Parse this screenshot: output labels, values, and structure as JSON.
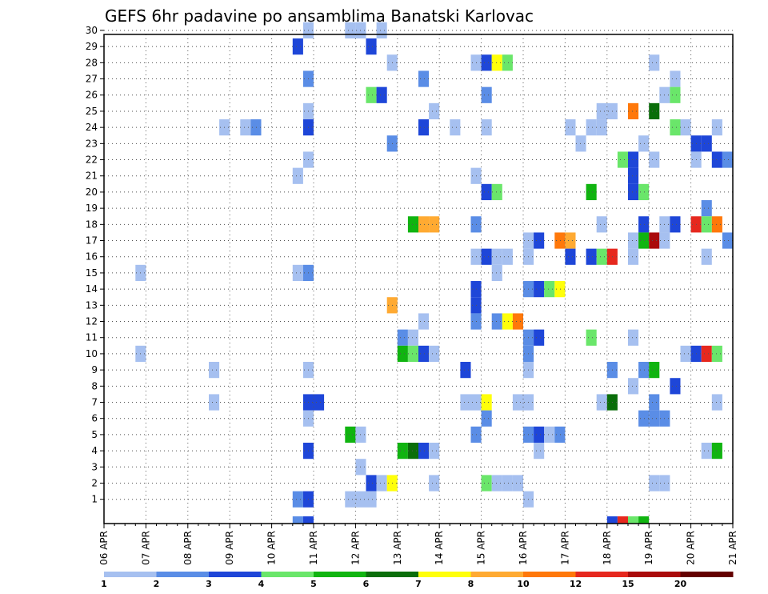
{
  "chart_data": {
    "type": "heatmap",
    "title": "GEFS 6hr padavine po ansamblima Banatski Karlovac",
    "x_tick_labels": [
      "06 APR",
      "07 APR",
      "08 APR",
      "09 APR",
      "10 APR",
      "11 APR",
      "12 APR",
      "13 APR",
      "14 APR",
      "15 APR",
      "16 APR",
      "17 APR",
      "18 APR",
      "19 APR",
      "20 APR",
      "21 APR"
    ],
    "y_tick_labels": [
      "1",
      "2",
      "3",
      "4",
      "5",
      "6",
      "7",
      "8",
      "9",
      "10",
      "11",
      "12",
      "13",
      "14",
      "15",
      "16",
      "17",
      "18",
      "19",
      "20",
      "21",
      "22",
      "23",
      "24",
      "25",
      "26",
      "27",
      "28",
      "29",
      "30"
    ],
    "x_range_days": [
      0,
      15
    ],
    "y_range_members": [
      0,
      30
    ],
    "grid": true,
    "legend": {
      "placement": "bottom",
      "labels": [
        "1",
        "2",
        "3",
        "4",
        "5",
        "6",
        "7",
        "8",
        "10",
        "12",
        "15",
        "20"
      ],
      "colors": [
        "#a6c0f0",
        "#5a8de6",
        "#1e46d8",
        "#6ae66a",
        "#10b410",
        "#0a6e0a",
        "#ffff0a",
        "#ffaa32",
        "#ff780a",
        "#e6281e",
        "#aa0a0a",
        "#640000"
      ]
    },
    "cell_width_hours": 6,
    "cells_note": "each cell: [member, day offset from 06 APR 00z, legend class index 0-11]",
    "cells": [
      [
        30,
        4.75,
        0
      ],
      [
        30,
        5.75,
        0
      ],
      [
        30,
        6.0,
        0
      ],
      [
        30,
        6.5,
        0
      ],
      [
        29,
        4.5,
        2
      ],
      [
        29,
        6.25,
        2
      ],
      [
        28,
        6.75,
        0
      ],
      [
        28,
        8.75,
        0
      ],
      [
        28,
        9.0,
        2
      ],
      [
        28,
        9.25,
        6
      ],
      [
        28,
        9.5,
        3
      ],
      [
        28,
        13.0,
        0
      ],
      [
        27,
        4.75,
        1
      ],
      [
        27,
        7.5,
        1
      ],
      [
        27,
        13.5,
        0
      ],
      [
        26,
        6.25,
        3
      ],
      [
        26,
        6.5,
        2
      ],
      [
        26,
        9.0,
        1
      ],
      [
        26,
        13.25,
        0
      ],
      [
        26,
        13.5,
        3
      ],
      [
        25,
        4.75,
        0
      ],
      [
        25,
        7.75,
        0
      ],
      [
        25,
        11.75,
        0
      ],
      [
        25,
        12.0,
        0
      ],
      [
        25,
        12.5,
        8
      ],
      [
        25,
        13.0,
        5
      ],
      [
        24,
        2.75,
        0
      ],
      [
        24,
        3.25,
        0
      ],
      [
        24,
        3.5,
        1
      ],
      [
        24,
        4.75,
        2
      ],
      [
        24,
        7.5,
        2
      ],
      [
        24,
        8.25,
        0
      ],
      [
        24,
        9.0,
        0
      ],
      [
        24,
        11.0,
        0
      ],
      [
        24,
        11.5,
        0
      ],
      [
        24,
        11.75,
        0
      ],
      [
        24,
        13.5,
        3
      ],
      [
        24,
        13.75,
        0
      ],
      [
        24,
        14.5,
        0
      ],
      [
        23,
        6.75,
        1
      ],
      [
        23,
        11.25,
        0
      ],
      [
        23,
        12.75,
        0
      ],
      [
        23,
        14.0,
        2
      ],
      [
        23,
        14.25,
        2
      ],
      [
        22,
        4.75,
        0
      ],
      [
        22,
        12.25,
        3
      ],
      [
        22,
        12.5,
        2
      ],
      [
        22,
        13.0,
        0
      ],
      [
        22,
        14.0,
        0
      ],
      [
        22,
        14.5,
        2
      ],
      [
        22,
        14.75,
        1
      ],
      [
        21,
        4.5,
        0
      ],
      [
        21,
        8.75,
        0
      ],
      [
        21,
        12.5,
        2
      ],
      [
        20,
        9.0,
        2
      ],
      [
        20,
        9.25,
        3
      ],
      [
        20,
        11.5,
        4
      ],
      [
        20,
        12.5,
        2
      ],
      [
        20,
        12.75,
        3
      ],
      [
        19,
        14.25,
        1
      ],
      [
        18,
        7.25,
        4
      ],
      [
        18,
        7.5,
        7
      ],
      [
        18,
        7.75,
        7
      ],
      [
        18,
        8.75,
        1
      ],
      [
        18,
        11.75,
        0
      ],
      [
        18,
        12.75,
        2
      ],
      [
        18,
        13.25,
        0
      ],
      [
        18,
        13.5,
        2
      ],
      [
        18,
        14.0,
        9
      ],
      [
        18,
        14.25,
        3
      ],
      [
        18,
        14.5,
        8
      ],
      [
        17,
        10.0,
        0
      ],
      [
        17,
        10.25,
        2
      ],
      [
        17,
        10.75,
        8
      ],
      [
        17,
        11.0,
        7
      ],
      [
        17,
        12.5,
        0
      ],
      [
        17,
        12.75,
        4
      ],
      [
        17,
        13.0,
        10
      ],
      [
        17,
        13.25,
        0
      ],
      [
        17,
        14.75,
        1
      ],
      [
        16,
        8.75,
        0
      ],
      [
        16,
        9.0,
        2
      ],
      [
        16,
        9.25,
        0
      ],
      [
        16,
        9.5,
        0
      ],
      [
        16,
        10.0,
        0
      ],
      [
        16,
        11.0,
        2
      ],
      [
        16,
        11.5,
        2
      ],
      [
        16,
        11.75,
        3
      ],
      [
        16,
        12.0,
        9
      ],
      [
        16,
        12.5,
        0
      ],
      [
        16,
        14.25,
        0
      ],
      [
        15,
        0.75,
        0
      ],
      [
        15,
        4.5,
        0
      ],
      [
        15,
        4.75,
        1
      ],
      [
        15,
        9.25,
        0
      ],
      [
        14,
        8.75,
        2
      ],
      [
        14,
        10.0,
        1
      ],
      [
        14,
        10.25,
        2
      ],
      [
        14,
        10.5,
        3
      ],
      [
        14,
        10.75,
        6
      ],
      [
        13,
        6.75,
        7
      ],
      [
        13,
        8.75,
        2
      ],
      [
        12,
        7.5,
        0
      ],
      [
        12,
        8.75,
        1
      ],
      [
        12,
        9.25,
        1
      ],
      [
        12,
        9.5,
        6
      ],
      [
        12,
        9.75,
        8
      ],
      [
        11,
        7.0,
        1
      ],
      [
        11,
        7.25,
        0
      ],
      [
        11,
        10.0,
        1
      ],
      [
        11,
        10.25,
        2
      ],
      [
        11,
        11.5,
        3
      ],
      [
        11,
        12.5,
        0
      ],
      [
        10,
        0.75,
        0
      ],
      [
        10,
        7.0,
        4
      ],
      [
        10,
        7.25,
        3
      ],
      [
        10,
        7.5,
        2
      ],
      [
        10,
        7.75,
        0
      ],
      [
        10,
        10.0,
        1
      ],
      [
        10,
        13.75,
        0
      ],
      [
        10,
        14.0,
        2
      ],
      [
        10,
        14.25,
        9
      ],
      [
        10,
        14.5,
        3
      ],
      [
        9,
        2.5,
        0
      ],
      [
        9,
        4.75,
        0
      ],
      [
        9,
        8.5,
        2
      ],
      [
        9,
        10.0,
        0
      ],
      [
        9,
        12.0,
        1
      ],
      [
        9,
        12.75,
        1
      ],
      [
        9,
        13.0,
        4
      ],
      [
        8,
        12.5,
        0
      ],
      [
        8,
        13.5,
        2
      ],
      [
        7,
        2.5,
        0
      ],
      [
        7,
        4.75,
        2
      ],
      [
        7,
        5.0,
        2
      ],
      [
        7,
        8.5,
        0
      ],
      [
        7,
        8.75,
        0
      ],
      [
        7,
        9.0,
        6
      ],
      [
        7,
        9.75,
        0
      ],
      [
        7,
        10.0,
        0
      ],
      [
        7,
        11.75,
        0
      ],
      [
        7,
        12.0,
        5
      ],
      [
        7,
        13.0,
        1
      ],
      [
        7,
        14.5,
        0
      ],
      [
        6,
        4.75,
        0
      ],
      [
        6,
        9.0,
        1
      ],
      [
        6,
        12.75,
        1
      ],
      [
        6,
        13.0,
        1
      ],
      [
        6,
        13.25,
        1
      ],
      [
        5,
        5.75,
        4
      ],
      [
        5,
        6.0,
        0
      ],
      [
        5,
        8.75,
        1
      ],
      [
        5,
        10.0,
        1
      ],
      [
        5,
        10.25,
        2
      ],
      [
        5,
        10.5,
        0
      ],
      [
        5,
        10.75,
        1
      ],
      [
        4,
        4.75,
        2
      ],
      [
        4,
        7.0,
        4
      ],
      [
        4,
        7.25,
        5
      ],
      [
        4,
        7.5,
        2
      ],
      [
        4,
        7.75,
        0
      ],
      [
        4,
        10.25,
        0
      ],
      [
        4,
        14.25,
        0
      ],
      [
        4,
        14.5,
        4
      ],
      [
        3,
        6.0,
        0
      ],
      [
        2,
        6.25,
        2
      ],
      [
        2,
        6.5,
        0
      ],
      [
        2,
        6.75,
        6
      ],
      [
        2,
        7.75,
        0
      ],
      [
        2,
        9.0,
        3
      ],
      [
        2,
        9.25,
        0
      ],
      [
        2,
        9.5,
        0
      ],
      [
        2,
        9.75,
        0
      ],
      [
        2,
        13.0,
        0
      ],
      [
        2,
        13.25,
        0
      ],
      [
        1,
        4.5,
        1
      ],
      [
        1,
        4.75,
        2
      ],
      [
        1,
        5.75,
        0
      ],
      [
        1,
        6.0,
        0
      ],
      [
        1,
        6.25,
        0
      ],
      [
        1,
        10.0,
        0
      ],
      [
        0,
        4.5,
        1
      ],
      [
        0,
        4.75,
        2
      ],
      [
        0,
        12.0,
        2
      ],
      [
        0,
        12.25,
        9
      ],
      [
        0,
        12.5,
        3
      ],
      [
        0,
        12.75,
        4
      ]
    ]
  }
}
